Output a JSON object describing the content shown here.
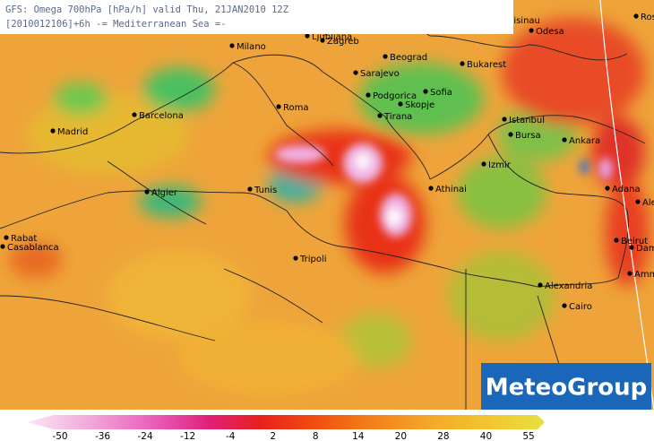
{
  "header": {
    "line1": "GFS: Omega 700hPa [hPa/h] valid Thu, 21JAN2010 12Z",
    "line2": "[2010012106]+6h -= Mediterranean Sea =-"
  },
  "cities": [
    "Chisinau",
    "Odesa",
    "Rostov",
    "Milano",
    "Ljubljana",
    "Zagreb",
    "Beograd",
    "Bukarest",
    "Sarajevo",
    "Podgorica",
    "Sofia",
    "Skopje",
    "Tirana",
    "Roma",
    "Barcelona",
    "Madrid",
    "Istanbul",
    "Bursa",
    "Ankara",
    "Izmir",
    "Athinai",
    "Adana",
    "Aleppo",
    "Algier",
    "Tunis",
    "Rabat",
    "Casablanca",
    "Tripoli",
    "Beirut",
    "Damascus",
    "Amman",
    "Alexandria",
    "Cairo"
  ],
  "legend": {
    "ticks": [
      -50,
      -36,
      -24,
      -12,
      -4,
      2,
      8,
      14,
      20,
      28,
      40,
      55
    ]
  },
  "logo": "MeteoGroup"
}
